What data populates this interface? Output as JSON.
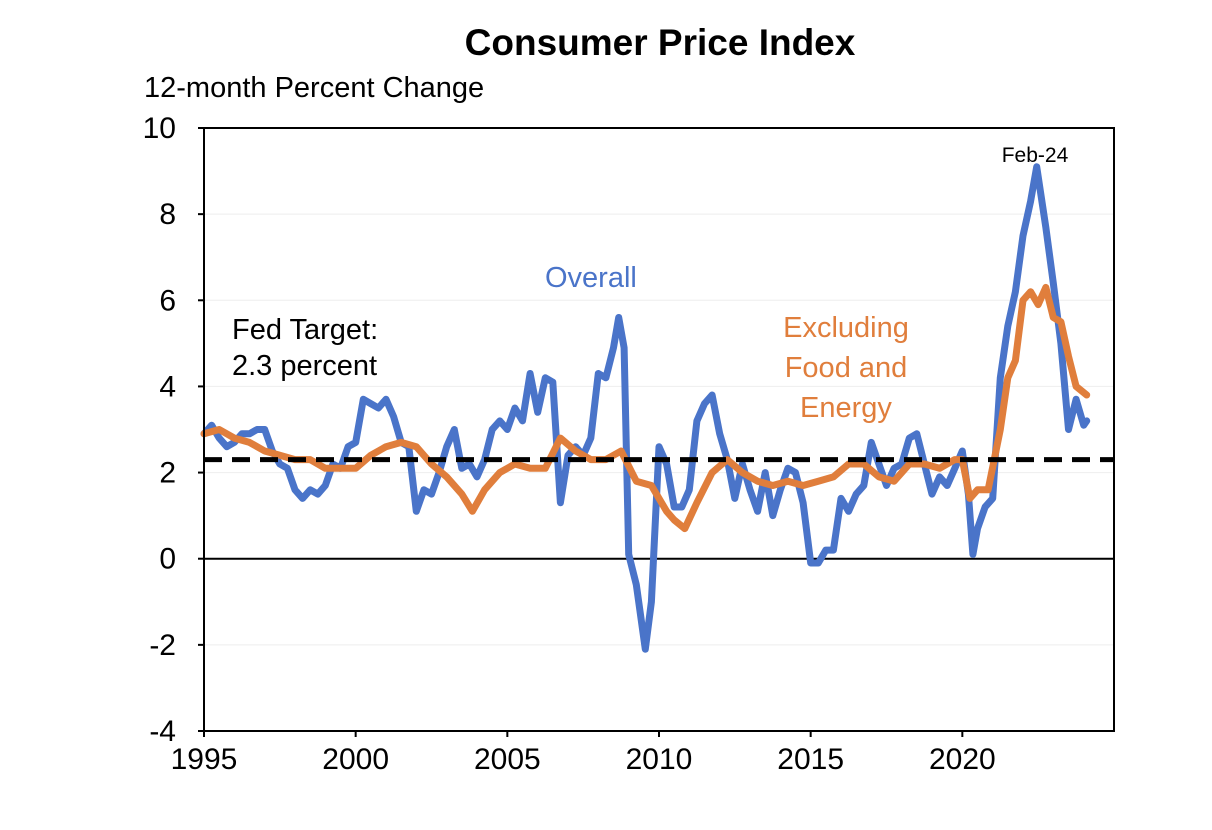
{
  "chart_data": {
    "type": "line",
    "title": "Consumer Price Index",
    "ylabel": "12-month Percent Change",
    "xlabel": "",
    "xlim": [
      1995,
      2025
    ],
    "ylim": [
      -4,
      10
    ],
    "x_ticks": [
      1995,
      2000,
      2005,
      2010,
      2015,
      2020
    ],
    "x_tick_labels": [
      "1995",
      "2000",
      "2005",
      "2010",
      "2015",
      "2020"
    ],
    "y_ticks": [
      -4,
      -2,
      0,
      2,
      4,
      6,
      8,
      10
    ],
    "y_tick_labels": [
      "-4",
      "-2",
      "0",
      "2",
      "4",
      "6",
      "8",
      "10"
    ],
    "grid": "horizontal",
    "reference_line": {
      "label": "Fed Target:",
      "label2": "2.3 percent",
      "value": 2.3,
      "style": "dashed"
    },
    "zero_line": 0,
    "annotations": {
      "peak_label": "Feb-24"
    },
    "series": [
      {
        "name": "Overall",
        "color": "#4a74c9",
        "points": [
          [
            1995.0,
            2.9
          ],
          [
            1995.25,
            3.1
          ],
          [
            1995.5,
            2.8
          ],
          [
            1995.75,
            2.6
          ],
          [
            1996.0,
            2.7
          ],
          [
            1996.25,
            2.9
          ],
          [
            1996.5,
            2.9
          ],
          [
            1996.75,
            3.0
          ],
          [
            1997.0,
            3.0
          ],
          [
            1997.25,
            2.5
          ],
          [
            1997.5,
            2.2
          ],
          [
            1997.75,
            2.1
          ],
          [
            1998.0,
            1.6
          ],
          [
            1998.25,
            1.4
          ],
          [
            1998.5,
            1.6
          ],
          [
            1998.75,
            1.5
          ],
          [
            1999.0,
            1.7
          ],
          [
            1999.25,
            2.2
          ],
          [
            1999.5,
            2.1
          ],
          [
            1999.75,
            2.6
          ],
          [
            2000.0,
            2.7
          ],
          [
            2000.25,
            3.7
          ],
          [
            2000.5,
            3.6
          ],
          [
            2000.75,
            3.5
          ],
          [
            2001.0,
            3.7
          ],
          [
            2001.25,
            3.3
          ],
          [
            2001.5,
            2.7
          ],
          [
            2001.75,
            2.6
          ],
          [
            2002.0,
            1.1
          ],
          [
            2002.25,
            1.6
          ],
          [
            2002.5,
            1.5
          ],
          [
            2002.75,
            2.0
          ],
          [
            2003.0,
            2.6
          ],
          [
            2003.25,
            3.0
          ],
          [
            2003.5,
            2.1
          ],
          [
            2003.75,
            2.2
          ],
          [
            2004.0,
            1.9
          ],
          [
            2004.25,
            2.3
          ],
          [
            2004.5,
            3.0
          ],
          [
            2004.75,
            3.2
          ],
          [
            2005.0,
            3.0
          ],
          [
            2005.25,
            3.5
          ],
          [
            2005.5,
            3.2
          ],
          [
            2005.75,
            4.3
          ],
          [
            2006.0,
            3.4
          ],
          [
            2006.25,
            4.2
          ],
          [
            2006.5,
            4.1
          ],
          [
            2006.75,
            1.3
          ],
          [
            2007.0,
            2.4
          ],
          [
            2007.25,
            2.6
          ],
          [
            2007.5,
            2.4
          ],
          [
            2007.75,
            2.8
          ],
          [
            2008.0,
            4.3
          ],
          [
            2008.25,
            4.2
          ],
          [
            2008.5,
            4.9
          ],
          [
            2008.67,
            5.6
          ],
          [
            2008.85,
            4.9
          ],
          [
            2009.0,
            0.1
          ],
          [
            2009.25,
            -0.6
          ],
          [
            2009.55,
            -2.1
          ],
          [
            2009.75,
            -1.0
          ],
          [
            2010.0,
            2.6
          ],
          [
            2010.25,
            2.2
          ],
          [
            2010.5,
            1.2
          ],
          [
            2010.75,
            1.2
          ],
          [
            2011.0,
            1.6
          ],
          [
            2011.25,
            3.2
          ],
          [
            2011.5,
            3.6
          ],
          [
            2011.75,
            3.8
          ],
          [
            2012.0,
            2.9
          ],
          [
            2012.25,
            2.3
          ],
          [
            2012.5,
            1.4
          ],
          [
            2012.75,
            2.2
          ],
          [
            2013.0,
            1.6
          ],
          [
            2013.25,
            1.1
          ],
          [
            2013.5,
            2.0
          ],
          [
            2013.75,
            1.0
          ],
          [
            2014.0,
            1.6
          ],
          [
            2014.25,
            2.1
          ],
          [
            2014.5,
            2.0
          ],
          [
            2014.75,
            1.3
          ],
          [
            2015.0,
            -0.1
          ],
          [
            2015.25,
            -0.1
          ],
          [
            2015.5,
            0.2
          ],
          [
            2015.75,
            0.2
          ],
          [
            2016.0,
            1.4
          ],
          [
            2016.25,
            1.1
          ],
          [
            2016.5,
            1.5
          ],
          [
            2016.75,
            1.7
          ],
          [
            2017.0,
            2.7
          ],
          [
            2017.25,
            2.2
          ],
          [
            2017.5,
            1.7
          ],
          [
            2017.75,
            2.1
          ],
          [
            2018.0,
            2.2
          ],
          [
            2018.25,
            2.8
          ],
          [
            2018.5,
            2.9
          ],
          [
            2018.75,
            2.2
          ],
          [
            2019.0,
            1.5
          ],
          [
            2019.25,
            1.9
          ],
          [
            2019.5,
            1.7
          ],
          [
            2019.75,
            2.1
          ],
          [
            2020.0,
            2.5
          ],
          [
            2020.2,
            1.5
          ],
          [
            2020.35,
            0.1
          ],
          [
            2020.5,
            0.7
          ],
          [
            2020.75,
            1.2
          ],
          [
            2021.0,
            1.4
          ],
          [
            2021.25,
            4.2
          ],
          [
            2021.5,
            5.4
          ],
          [
            2021.75,
            6.2
          ],
          [
            2022.0,
            7.5
          ],
          [
            2022.25,
            8.3
          ],
          [
            2022.45,
            9.1
          ],
          [
            2022.75,
            7.7
          ],
          [
            2023.0,
            6.4
          ],
          [
            2023.25,
            5.0
          ],
          [
            2023.5,
            3.0
          ],
          [
            2023.75,
            3.7
          ],
          [
            2024.0,
            3.1
          ],
          [
            2024.1,
            3.2
          ]
        ]
      },
      {
        "name": "Excluding Food and Energy",
        "color": "#e07e3c",
        "points": [
          [
            1995.0,
            2.9
          ],
          [
            1995.5,
            3.0
          ],
          [
            1996.0,
            2.8
          ],
          [
            1996.5,
            2.7
          ],
          [
            1997.0,
            2.5
          ],
          [
            1997.5,
            2.4
          ],
          [
            1998.0,
            2.3
          ],
          [
            1998.5,
            2.3
          ],
          [
            1999.0,
            2.1
          ],
          [
            1999.5,
            2.1
          ],
          [
            2000.0,
            2.1
          ],
          [
            2000.5,
            2.4
          ],
          [
            2001.0,
            2.6
          ],
          [
            2001.5,
            2.7
          ],
          [
            2002.0,
            2.6
          ],
          [
            2002.5,
            2.2
          ],
          [
            2003.0,
            1.9
          ],
          [
            2003.5,
            1.5
          ],
          [
            2003.85,
            1.1
          ],
          [
            2004.25,
            1.6
          ],
          [
            2004.75,
            2.0
          ],
          [
            2005.25,
            2.2
          ],
          [
            2005.75,
            2.1
          ],
          [
            2006.25,
            2.1
          ],
          [
            2006.75,
            2.8
          ],
          [
            2007.25,
            2.5
          ],
          [
            2007.75,
            2.3
          ],
          [
            2008.25,
            2.3
          ],
          [
            2008.75,
            2.5
          ],
          [
            2009.25,
            1.8
          ],
          [
            2009.75,
            1.7
          ],
          [
            2010.25,
            1.1
          ],
          [
            2010.5,
            0.9
          ],
          [
            2010.85,
            0.7
          ],
          [
            2011.25,
            1.3
          ],
          [
            2011.75,
            2.0
          ],
          [
            2012.25,
            2.3
          ],
          [
            2012.75,
            2.0
          ],
          [
            2013.25,
            1.8
          ],
          [
            2013.75,
            1.7
          ],
          [
            2014.25,
            1.8
          ],
          [
            2014.75,
            1.7
          ],
          [
            2015.25,
            1.8
          ],
          [
            2015.75,
            1.9
          ],
          [
            2016.25,
            2.2
          ],
          [
            2016.75,
            2.2
          ],
          [
            2017.25,
            1.9
          ],
          [
            2017.75,
            1.8
          ],
          [
            2018.25,
            2.2
          ],
          [
            2018.75,
            2.2
          ],
          [
            2019.25,
            2.1
          ],
          [
            2019.75,
            2.3
          ],
          [
            2020.0,
            2.3
          ],
          [
            2020.25,
            1.4
          ],
          [
            2020.5,
            1.6
          ],
          [
            2020.85,
            1.6
          ],
          [
            2021.25,
            3.0
          ],
          [
            2021.5,
            4.2
          ],
          [
            2021.75,
            4.6
          ],
          [
            2022.0,
            6.0
          ],
          [
            2022.25,
            6.2
          ],
          [
            2022.5,
            5.9
          ],
          [
            2022.75,
            6.3
          ],
          [
            2023.0,
            5.6
          ],
          [
            2023.25,
            5.5
          ],
          [
            2023.5,
            4.7
          ],
          [
            2023.75,
            4.0
          ],
          [
            2024.1,
            3.8
          ]
        ]
      }
    ],
    "label_overall": "Overall",
    "label_core_1": "Excluding",
    "label_core_2": "Food and",
    "label_core_3": "Energy"
  }
}
